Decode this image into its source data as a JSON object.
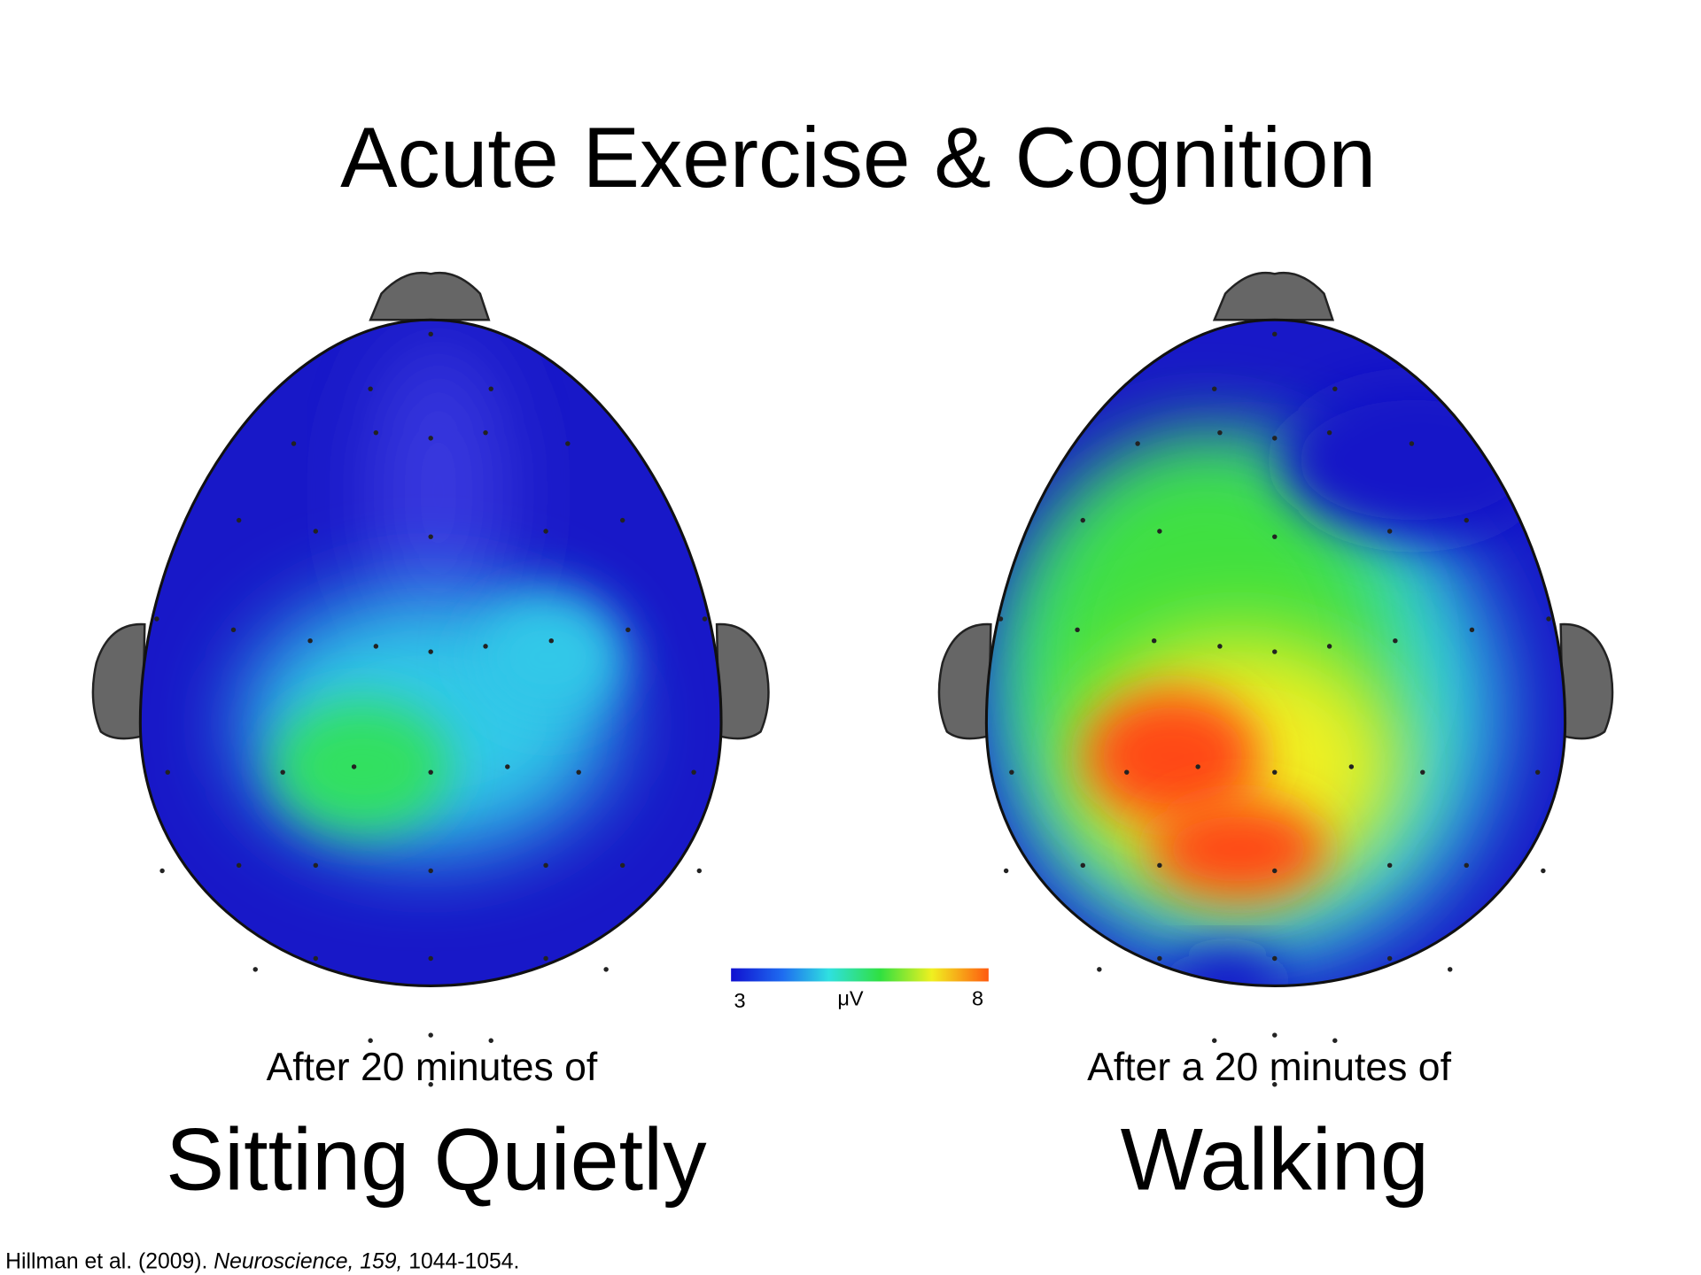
{
  "title": "Acute Exercise & Cognition",
  "panels": [
    {
      "caption": "After 20 minutes of",
      "condition": "Sitting Quietly"
    },
    {
      "caption": "After a 20 minutes of",
      "condition": "Walking"
    }
  ],
  "colorbar": {
    "min": 3,
    "unit": "μV",
    "max": 8
  },
  "citation": {
    "authors": "Hillman et al. (2009).",
    "journal": "Neuroscience, 159,",
    "pages": "1044-1054."
  }
}
